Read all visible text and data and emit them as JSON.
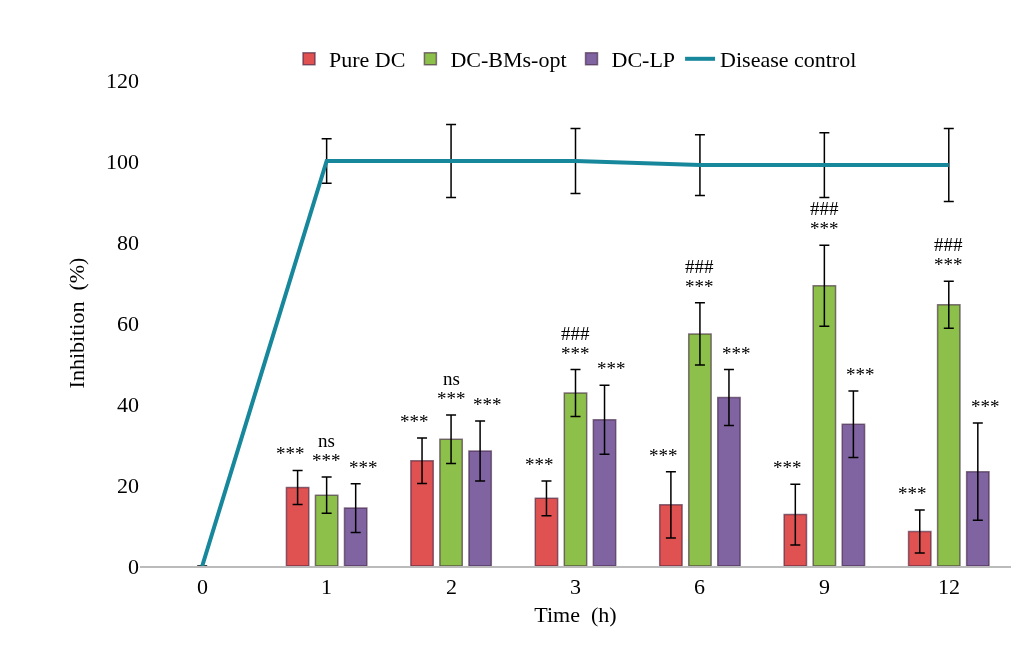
{
  "chart_data": {
    "type": "bar",
    "xlabel": "Time  (h)",
    "ylabel": "Inhibition  (%)",
    "categories": [
      "0",
      "1",
      "2",
      "3",
      "6",
      "9",
      "12"
    ],
    "series": [
      {
        "name": "Pure DC",
        "color": "#e05252",
        "values": [
          null,
          19.4,
          26,
          16.7,
          15.1,
          12.7,
          8.5
        ],
        "errors": [
          null,
          4.2,
          5.6,
          4.3,
          8.2,
          7.5,
          5.3
        ]
      },
      {
        "name": "DC-BMs-opt",
        "color": "#8dbf4b",
        "values": [
          null,
          17.5,
          31.3,
          42.7,
          57.3,
          69.2,
          64.5
        ],
        "errors": [
          null,
          4.5,
          6,
          5.8,
          7.7,
          10,
          5.8
        ]
      },
      {
        "name": "DC-LP",
        "color": "#8064a2",
        "values": [
          null,
          14.3,
          28.4,
          36.1,
          41.6,
          35,
          23.3
        ],
        "errors": [
          null,
          6,
          7.4,
          8.5,
          6.9,
          8.2,
          12
        ]
      },
      {
        "name": "Disease control",
        "type": "line",
        "color": "#17879c",
        "values": [
          0,
          100,
          100,
          100,
          99,
          99,
          99
        ],
        "errors": [
          null,
          5.5,
          9,
          8,
          7.5,
          8,
          9
        ]
      }
    ],
    "ylim": [
      0,
      120
    ],
    "yticks": [
      0,
      20,
      40,
      60,
      80,
      100,
      120
    ],
    "legend": "top",
    "marker": "none",
    "line_style": "solid",
    "annotations": [
      "***",
      "***",
      "ns",
      "***",
      "***",
      "***",
      "ns",
      "***",
      "***",
      "***",
      "###",
      "***",
      "***",
      "***",
      "###",
      "***",
      "***",
      "***",
      "###",
      "***",
      "***",
      "***",
      "###",
      "***"
    ]
  }
}
